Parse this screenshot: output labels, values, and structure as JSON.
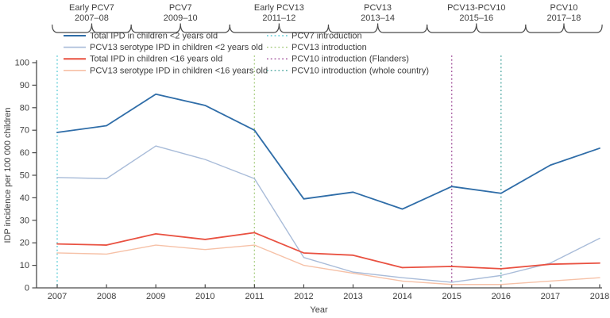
{
  "period_brackets": [
    {
      "label": "Early PCV7",
      "years": "2007–08",
      "from": 2006.9,
      "to": 2008.5
    },
    {
      "label": "PCV7",
      "years": "2009–10",
      "from": 2008.5,
      "to": 2010.5
    },
    {
      "label": "Early PCV13",
      "years": "2011–12",
      "from": 2010.5,
      "to": 2012.5
    },
    {
      "label": "PCV13",
      "years": "2013–14",
      "from": 2012.5,
      "to": 2014.5
    },
    {
      "label": "PCV13-PCV10",
      "years": "2015–16",
      "from": 2014.5,
      "to": 2016.5
    },
    {
      "label": "PCV10",
      "years": "2017–18",
      "from": 2016.5,
      "to": 2018.05
    }
  ],
  "chart_data": {
    "type": "line",
    "x": [
      2007,
      2008,
      2009,
      2010,
      2011,
      2012,
      2013,
      2014,
      2015,
      2016,
      2017,
      2018
    ],
    "series": [
      {
        "name": "Total IPD in children <2 years old",
        "color": "#2f6da8",
        "width": 1.8,
        "values": [
          69,
          72,
          86,
          81,
          70,
          39.5,
          42.5,
          35,
          45,
          42,
          54.5,
          62
        ]
      },
      {
        "name": "PCV13 serotype IPD in children <2 years old",
        "color": "#a9bcd9",
        "width": 1.4,
        "values": [
          49,
          48.5,
          63,
          57,
          48.5,
          13.5,
          7,
          4.5,
          2.5,
          5.5,
          11,
          22
        ]
      },
      {
        "name": "Total IPD in children <16 years old",
        "color": "#e95141",
        "width": 1.8,
        "values": [
          19.5,
          19,
          24,
          21.5,
          24.5,
          15.5,
          14.5,
          9,
          9.5,
          8.5,
          10.5,
          11
        ]
      },
      {
        "name": "PCV13 serotype IPD in children <16 years old",
        "color": "#f6c1a7",
        "width": 1.4,
        "values": [
          15.5,
          15,
          19,
          17,
          19,
          10,
          6.5,
          3,
          1.5,
          1.5,
          3,
          4.5
        ]
      }
    ],
    "vlines": [
      {
        "x": 2007,
        "color": "#5fcdd8",
        "label": "PCV7 introduction"
      },
      {
        "x": 2011,
        "color": "#a5cc7d",
        "label": "PCV13 introduction"
      },
      {
        "x": 2015,
        "color": "#a2539c",
        "label": "PCV10 introduction (Flanders)"
      },
      {
        "x": 2016,
        "color": "#4da8a1",
        "label": "PCV10 introduction (whole country)"
      }
    ],
    "ylim": [
      0,
      100
    ],
    "yticks": [
      0,
      10,
      20,
      30,
      40,
      50,
      60,
      70,
      80,
      90,
      100
    ],
    "xlabel": "Year",
    "ylabel": "IDP incidence per 100 000 children",
    "grid": false,
    "legend_position": "top-inside"
  }
}
